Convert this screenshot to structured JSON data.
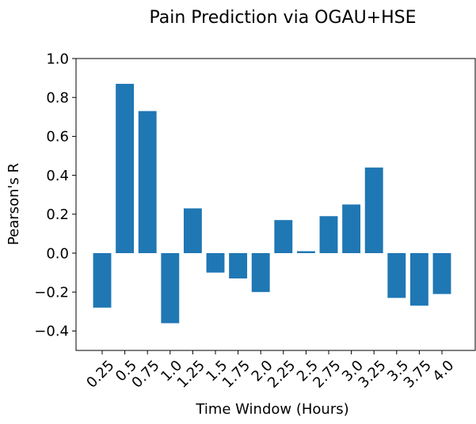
{
  "chart_data": {
    "type": "bar",
    "title": "Pain Prediction via OGAU+HSE",
    "xlabel": "Time Window (Hours)",
    "ylabel": "Pearson's R",
    "categories": [
      "0.25",
      "0.5",
      "0.75",
      "1.0",
      "1.25",
      "1.5",
      "1.75",
      "2.0",
      "2.25",
      "2.5",
      "2.75",
      "3.0",
      "3.25",
      "3.5",
      "3.75",
      "4.0"
    ],
    "values": [
      -0.28,
      0.87,
      0.73,
      -0.36,
      0.23,
      -0.1,
      -0.13,
      -0.2,
      0.17,
      0.01,
      0.19,
      0.25,
      0.44,
      -0.23,
      -0.27,
      -0.21
    ],
    "ylim": [
      -0.5,
      1.0
    ],
    "yticks": [
      -0.4,
      -0.2,
      0.0,
      0.2,
      0.4,
      0.6,
      0.8,
      1.0
    ],
    "ytick_labels": [
      "−0.4",
      "−0.2",
      "0.0",
      "0.2",
      "0.4",
      "0.6",
      "0.8",
      "1.0"
    ],
    "bar_color": "#1f77b4",
    "grid": false,
    "legend": "none"
  }
}
